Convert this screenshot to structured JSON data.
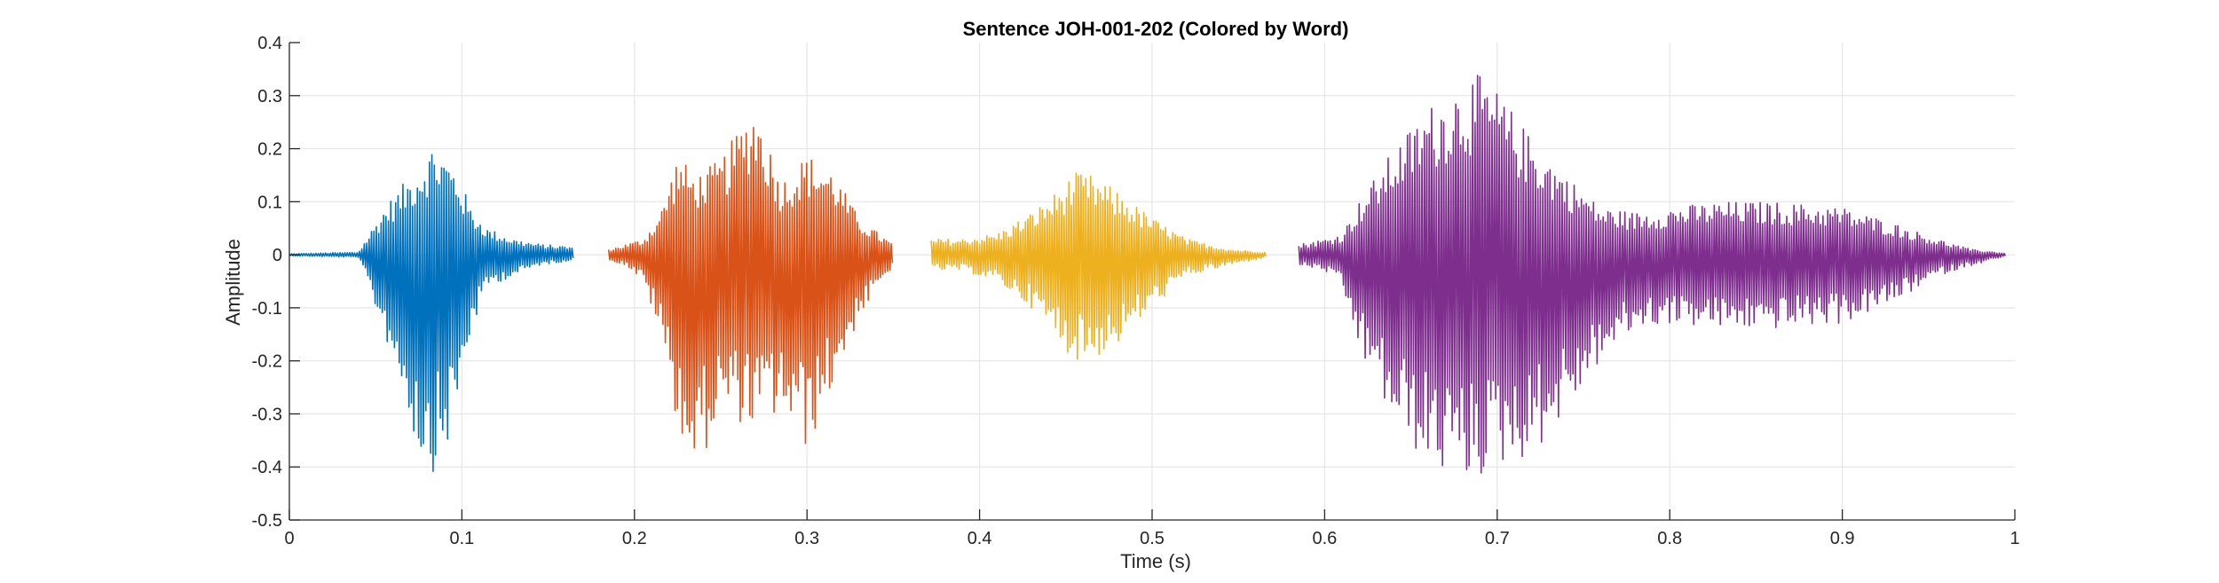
{
  "chart_data": {
    "type": "line",
    "title": "Sentence JOH-001-202 (Colored by Word)",
    "xlabel": "Time (s)",
    "ylabel": "Amplitude",
    "xlim": [
      0,
      1
    ],
    "ylim": [
      -0.5,
      0.4
    ],
    "grid": true,
    "x_ticks": [
      0,
      0.1,
      0.2,
      0.3,
      0.4,
      0.5,
      0.6,
      0.7,
      0.8,
      0.9,
      1
    ],
    "x_tick_labels": [
      "0",
      "0.1",
      "0.2",
      "0.3",
      "0.4",
      "0.5",
      "0.6",
      "0.7",
      "0.8",
      "0.9",
      "1"
    ],
    "y_ticks": [
      -0.5,
      -0.4,
      -0.3,
      -0.2,
      -0.1,
      0,
      0.1,
      0.2,
      0.3,
      0.4
    ],
    "y_tick_labels": [
      "-0.5",
      "-0.4",
      "-0.3",
      "-0.2",
      "-0.1",
      "0",
      "0.1",
      "0.2",
      "0.3",
      "0.4"
    ],
    "series": [
      {
        "color": "#0072BD",
        "x": [
          0.0,
          0.04,
          0.055,
          0.065,
          0.075,
          0.083,
          0.09,
          0.097,
          0.105,
          0.115,
          0.13,
          0.145,
          0.165
        ],
        "envelope_pos": [
          0.002,
          0.005,
          0.09,
          0.13,
          0.17,
          0.21,
          0.19,
          0.16,
          0.09,
          0.05,
          0.03,
          0.02,
          0.015
        ],
        "envelope_neg": [
          -0.002,
          -0.005,
          -0.15,
          -0.25,
          -0.38,
          -0.41,
          -0.38,
          -0.3,
          -0.15,
          -0.06,
          -0.04,
          -0.02,
          -0.01
        ]
      },
      {
        "color": "#D95319",
        "x": [
          0.185,
          0.195,
          0.205,
          0.215,
          0.225,
          0.235,
          0.25,
          0.27,
          0.285,
          0.3,
          0.315,
          0.33,
          0.35
        ],
        "envelope_pos": [
          0.01,
          0.02,
          0.03,
          0.08,
          0.19,
          0.15,
          0.18,
          0.29,
          0.14,
          0.19,
          0.16,
          0.07,
          0.02
        ],
        "envelope_neg": [
          -0.01,
          -0.02,
          -0.05,
          -0.15,
          -0.32,
          -0.42,
          -0.3,
          -0.33,
          -0.3,
          -0.37,
          -0.25,
          -0.12,
          -0.02
        ]
      },
      {
        "color": "#EDB120",
        "x": [
          0.372,
          0.39,
          0.41,
          0.43,
          0.445,
          0.455,
          0.465,
          0.48,
          0.5,
          0.52,
          0.545,
          0.566
        ],
        "envelope_pos": [
          0.03,
          0.03,
          0.04,
          0.08,
          0.12,
          0.155,
          0.15,
          0.12,
          0.07,
          0.03,
          0.01,
          0.005
        ],
        "envelope_neg": [
          -0.03,
          -0.03,
          -0.05,
          -0.1,
          -0.16,
          -0.2,
          -0.2,
          -0.17,
          -0.1,
          -0.04,
          -0.02,
          -0.005
        ]
      },
      {
        "color": "#7E2F8E",
        "x": [
          0.585,
          0.6,
          0.61,
          0.62,
          0.64,
          0.66,
          0.68,
          0.69,
          0.7,
          0.72,
          0.74,
          0.76,
          0.78,
          0.8,
          0.83,
          0.86,
          0.9,
          0.93,
          0.955,
          0.975,
          0.995
        ],
        "envelope_pos": [
          0.02,
          0.03,
          0.04,
          0.1,
          0.2,
          0.28,
          0.33,
          0.34,
          0.31,
          0.22,
          0.15,
          0.09,
          0.08,
          0.09,
          0.1,
          0.1,
          0.09,
          0.06,
          0.03,
          0.01,
          0.003
        ],
        "envelope_neg": [
          -0.02,
          -0.03,
          -0.06,
          -0.18,
          -0.32,
          -0.4,
          -0.43,
          -0.42,
          -0.4,
          -0.38,
          -0.3,
          -0.2,
          -0.14,
          -0.13,
          -0.14,
          -0.14,
          -0.13,
          -0.09,
          -0.04,
          -0.02,
          -0.003
        ]
      }
    ]
  }
}
